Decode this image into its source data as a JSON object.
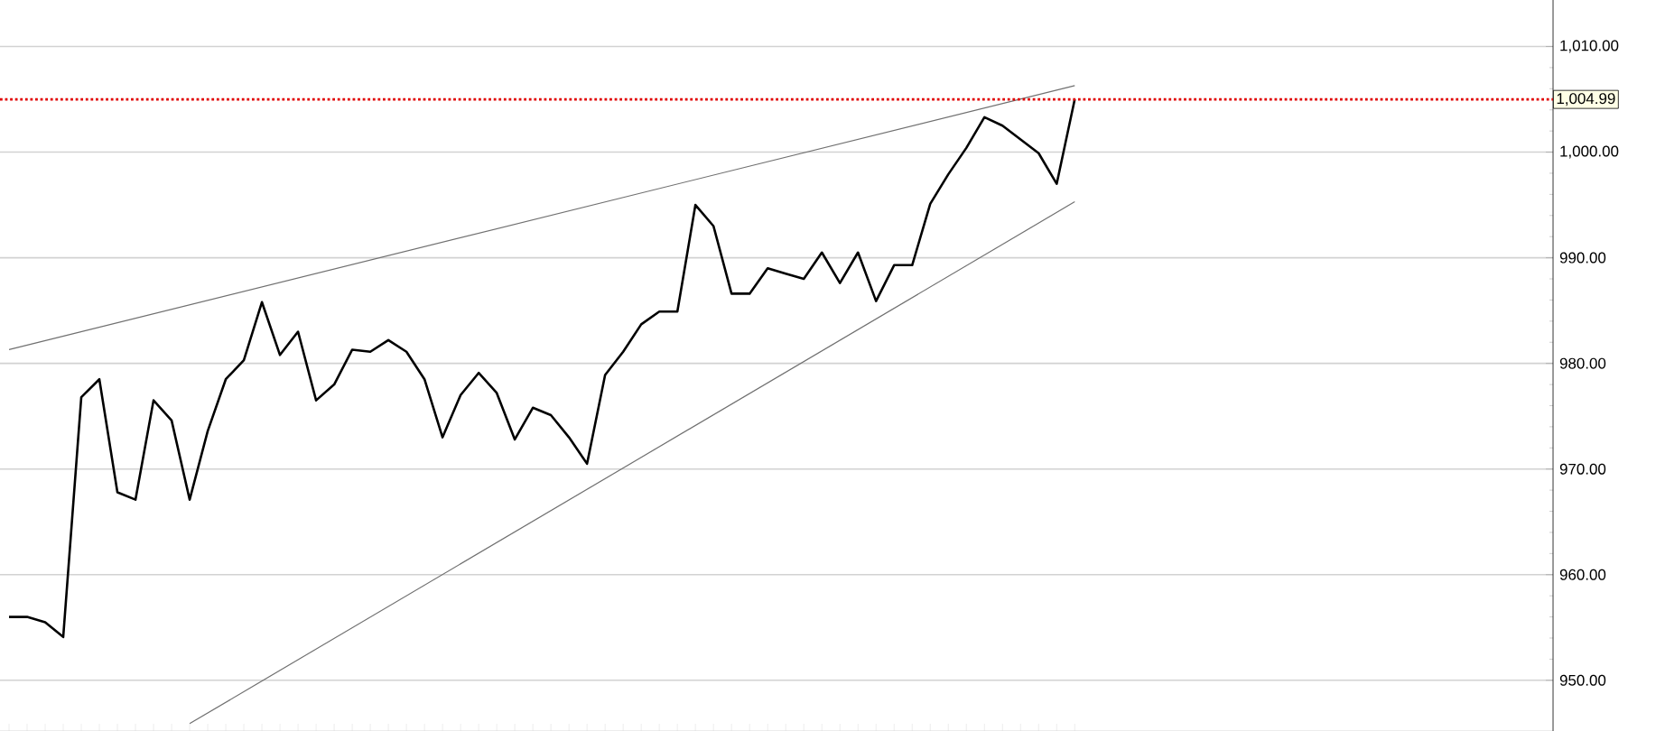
{
  "chart_data": {
    "type": "line",
    "categories": [
      null,
      null,
      null,
      null,
      null,
      null,
      null,
      null,
      null,
      null,
      null,
      null,
      null,
      null,
      null,
      null,
      null,
      null,
      null,
      null,
      null,
      null,
      null,
      null,
      null,
      null,
      null,
      null,
      null,
      null,
      null,
      null,
      null,
      null,
      null,
      null,
      null,
      null,
      null,
      null,
      null,
      null,
      null,
      null,
      null,
      null,
      null,
      null,
      null,
      null,
      null,
      null,
      null,
      null,
      null,
      null,
      null,
      null,
      null,
      null
    ],
    "series": [
      {
        "color": "#000000",
        "values": [
          956.0,
          956.0,
          955.5,
          954.1,
          976.8,
          978.5,
          967.8,
          967.1,
          976.5,
          974.6,
          967.1,
          973.6,
          978.5,
          980.3,
          985.8,
          980.8,
          983.0,
          976.5,
          978.0,
          981.3,
          981.1,
          982.2,
          981.1,
          978.5,
          973.0,
          977.0,
          979.1,
          977.2,
          972.8,
          975.8,
          975.1,
          973.0,
          970.5,
          978.9,
          981.1,
          983.7,
          984.9,
          984.9,
          995.0,
          993.0,
          986.6,
          986.6,
          989.0,
          988.5,
          988.0,
          990.5,
          987.6,
          990.5,
          985.9,
          989.3,
          989.3,
          995.1,
          997.9,
          1000.4,
          1003.3,
          1002.5,
          1001.2,
          999.9,
          997.0,
          1005.0
        ]
      },
      {
        "type": "line",
        "color": "#707070",
        "values": [
          981.3,
          null,
          null,
          null,
          null,
          null,
          null,
          null,
          null,
          null,
          null,
          null,
          null,
          null,
          null,
          null,
          null,
          null,
          null,
          null,
          null,
          null,
          null,
          null,
          null,
          null,
          null,
          null,
          null,
          null,
          null,
          null,
          null,
          null,
          null,
          null,
          null,
          null,
          null,
          null,
          null,
          null,
          null,
          null,
          null,
          null,
          null,
          null,
          null,
          null,
          null,
          null,
          null,
          null,
          null,
          null,
          null,
          null,
          null,
          1006.3
        ]
      },
      {
        "type": "line",
        "color": "#707070",
        "values": [
          null,
          null,
          null,
          null,
          null,
          null,
          null,
          null,
          null,
          null,
          945.9,
          null,
          null,
          null,
          null,
          null,
          null,
          null,
          null,
          null,
          null,
          null,
          null,
          null,
          null,
          null,
          null,
          null,
          null,
          null,
          null,
          null,
          null,
          null,
          null,
          null,
          null,
          null,
          null,
          null,
          null,
          null,
          null,
          null,
          null,
          null,
          null,
          null,
          null,
          null,
          null,
          null,
          null,
          null,
          null,
          null,
          null,
          null,
          null,
          995.3
        ]
      }
    ],
    "ylim": [
      945.2,
      1014.4
    ],
    "yticks": [
      {
        "value": 950,
        "label": "950.00"
      },
      {
        "value": 960,
        "label": "960.00"
      },
      {
        "value": 970,
        "label": "970.00"
      },
      {
        "value": 980,
        "label": "980.00"
      },
      {
        "value": 990,
        "label": "990.00"
      },
      {
        "value": 1000,
        "label": "1,000.00"
      },
      {
        "value": 1010,
        "label": "1,010.00"
      }
    ],
    "ref_lines": [
      {
        "axis": "y",
        "value": 1004.99,
        "label": "1,004.99",
        "color": "#e00000",
        "line_style": "dotted"
      }
    ],
    "grid": "y",
    "tick_labels": "y",
    "marker": "none",
    "line_style": "solid"
  }
}
